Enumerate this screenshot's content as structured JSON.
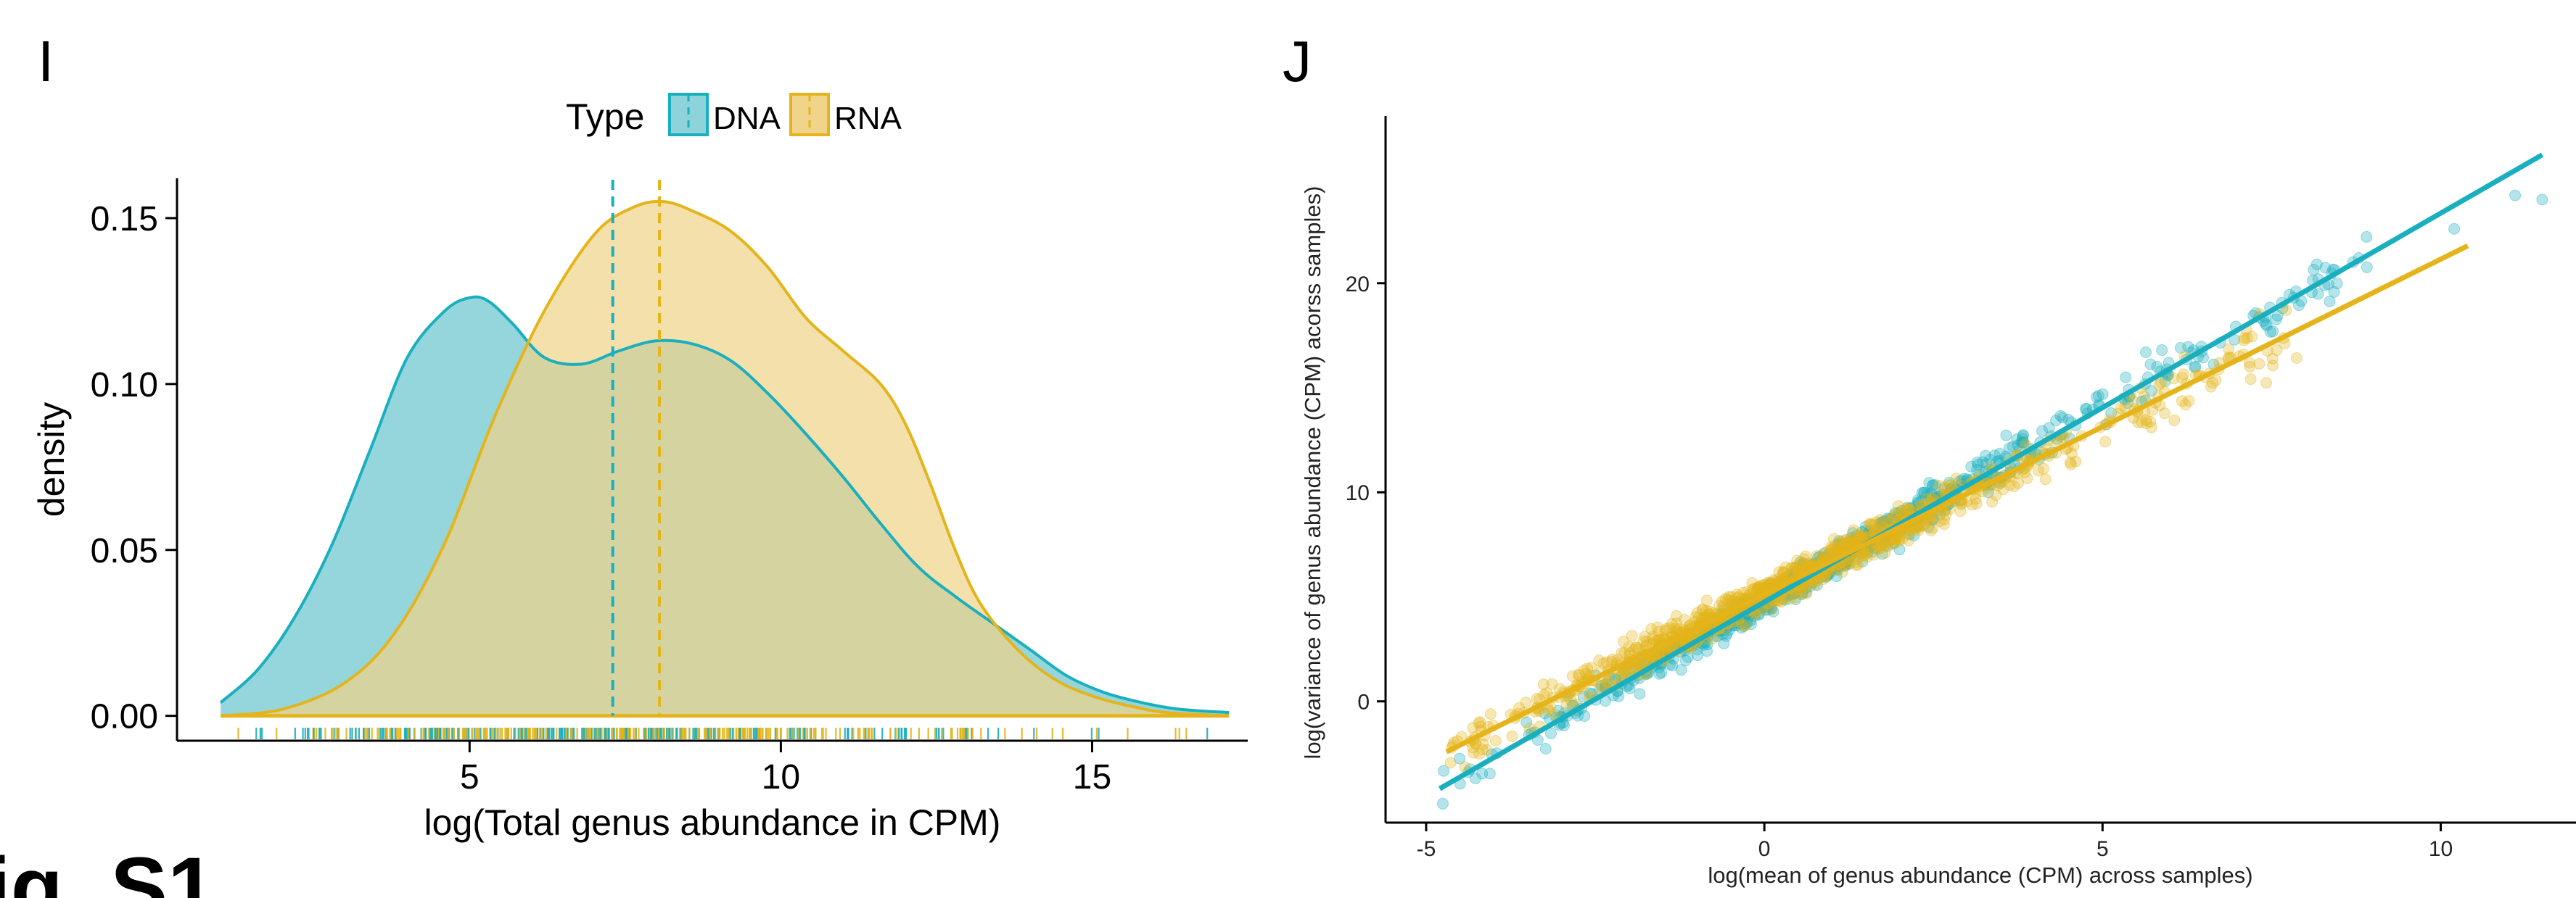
{
  "panels": {
    "left_letter": "I",
    "right_letter": "J",
    "corner_text": "ig. S1"
  },
  "colors": {
    "dna": "#1AAFBE",
    "rna": "#E4B41A",
    "dna_fill": "#8FD3DA",
    "rna_fill": "#EFD48A",
    "overlap_fill": "#C4C482"
  },
  "chart_data": [
    {
      "type": "area",
      "legend_title": "Type",
      "legend_placement": "top",
      "xlabel": "log(Total genus abundance in CPM)",
      "ylabel": "density",
      "xlim": [
        0.3,
        17.5
      ],
      "ylim": [
        -0.0075,
        0.162
      ],
      "x_ticks": [
        5,
        10,
        15
      ],
      "y_ticks": [
        0.0,
        0.05,
        0.1,
        0.15
      ],
      "y_tick_labels": [
        "0.00",
        "0.05",
        "0.10",
        "0.15"
      ],
      "grid": false,
      "series": [
        {
          "name": "DNA",
          "x": [
            1.0,
            1.6,
            2.2,
            2.8,
            3.4,
            4.0,
            4.6,
            5.0,
            5.3,
            5.7,
            6.2,
            6.8,
            7.4,
            8.0,
            8.6,
            9.2,
            9.8,
            10.4,
            11.0,
            11.6,
            12.2,
            12.8,
            13.4,
            14.0,
            14.6,
            15.2,
            15.8,
            16.4,
            17.2
          ],
          "density": [
            0.004,
            0.014,
            0.03,
            0.052,
            0.08,
            0.108,
            0.122,
            0.126,
            0.125,
            0.118,
            0.108,
            0.106,
            0.11,
            0.113,
            0.112,
            0.107,
            0.097,
            0.085,
            0.072,
            0.058,
            0.045,
            0.036,
            0.028,
            0.02,
            0.012,
            0.007,
            0.004,
            0.002,
            0.001
          ],
          "mean": 7.3
        },
        {
          "name": "RNA",
          "x": [
            1.0,
            2.0,
            3.0,
            3.8,
            4.6,
            5.4,
            6.2,
            7.0,
            7.6,
            8.1,
            8.6,
            9.2,
            9.8,
            10.4,
            11.0,
            11.6,
            12.0,
            12.4,
            12.8,
            13.2,
            13.8,
            14.4,
            15.0,
            15.6,
            16.2,
            17.2
          ],
          "density": [
            0.0,
            0.002,
            0.01,
            0.025,
            0.052,
            0.09,
            0.122,
            0.145,
            0.153,
            0.155,
            0.152,
            0.146,
            0.135,
            0.12,
            0.11,
            0.1,
            0.088,
            0.07,
            0.05,
            0.034,
            0.02,
            0.011,
            0.006,
            0.003,
            0.001,
            0.0
          ],
          "mean": 8.05
        }
      ],
      "rug": true
    },
    {
      "type": "scatter",
      "xlabel": "log(mean of genus abundance (CPM) across samples)",
      "ylabel": "log(variance of genus abundance (CPM) acorss samples)",
      "xlim": [
        -5.6,
        12.0
      ],
      "ylim": [
        -5.8,
        28.0
      ],
      "x_ticks": [
        -5,
        0,
        5,
        10
      ],
      "y_ticks": [
        0,
        10,
        20
      ],
      "grid": false,
      "point_counts": {
        "DNA": 900,
        "RNA": 1100
      },
      "series": [
        {
          "name": "DNA",
          "trend": {
            "slope": 1.86,
            "intercept": 4.75
          },
          "x_range": [
            -4.8,
            11.5
          ],
          "scatter_sd": 0.8
        },
        {
          "name": "RNA",
          "trend": {
            "slope": 1.603,
            "intercept": 5.12
          },
          "x_range": [
            -4.7,
            10.4
          ],
          "scatter_sd": 0.9
        }
      ],
      "extra_points": [
        {
          "series": "DNA",
          "x": 11.1,
          "y": 24.2
        },
        {
          "series": "DNA",
          "x": 11.5,
          "y": 24.0
        },
        {
          "series": "DNA",
          "x": 10.2,
          "y": 22.6
        }
      ]
    }
  ]
}
